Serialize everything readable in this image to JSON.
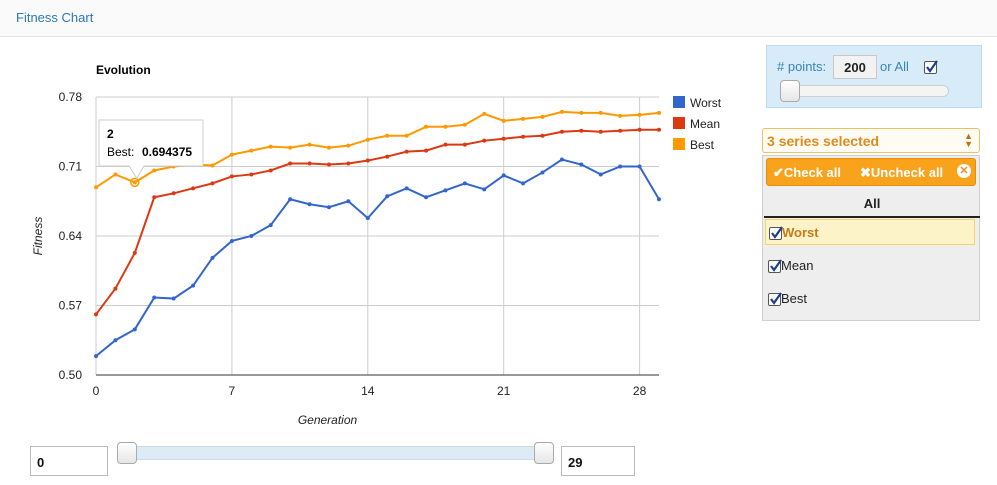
{
  "panel": {
    "title": "Fitness Chart"
  },
  "chart_data": {
    "type": "line",
    "title": "Evolution",
    "xlabel": "Generation",
    "ylabel": "Fitness",
    "xlim": [
      0,
      29
    ],
    "ylim": [
      0.5,
      0.78
    ],
    "xticks": [
      "0",
      "7",
      "14",
      "21",
      "28"
    ],
    "xtick_values": [
      0,
      7,
      14,
      21,
      28
    ],
    "yticks": [
      "0.78",
      "0.71",
      "0.64",
      "0.57",
      "0.50"
    ],
    "ytick_values": [
      0.78,
      0.71,
      0.64,
      0.57,
      0.5
    ],
    "grid": true,
    "legend_position": "right",
    "x": [
      0,
      1,
      2,
      3,
      4,
      5,
      6,
      7,
      8,
      9,
      10,
      11,
      12,
      13,
      14,
      15,
      16,
      17,
      18,
      19,
      20,
      21,
      22,
      23,
      24,
      25,
      26,
      27,
      28,
      29
    ],
    "series": [
      {
        "name": "Worst",
        "color": "#3366cc",
        "values": [
          0.519,
          0.535,
          0.546,
          0.578,
          0.577,
          0.59,
          0.618,
          0.635,
          0.64,
          0.651,
          0.677,
          0.672,
          0.669,
          0.675,
          0.658,
          0.68,
          0.688,
          0.679,
          0.686,
          0.693,
          0.687,
          0.701,
          0.693,
          0.704,
          0.717,
          0.712,
          0.702,
          0.71,
          0.71,
          0.677
        ]
      },
      {
        "name": "Mean",
        "color": "#dc3912",
        "values": [
          0.561,
          0.587,
          0.623,
          0.679,
          0.683,
          0.688,
          0.693,
          0.7,
          0.702,
          0.706,
          0.713,
          0.713,
          0.712,
          0.713,
          0.716,
          0.72,
          0.725,
          0.726,
          0.732,
          0.732,
          0.736,
          0.738,
          0.74,
          0.741,
          0.745,
          0.746,
          0.745,
          0.746,
          0.747,
          0.747
        ]
      },
      {
        "name": "Best",
        "color": "#ff9900",
        "values": [
          0.689,
          0.702,
          0.694,
          0.706,
          0.71,
          0.712,
          0.711,
          0.722,
          0.726,
          0.73,
          0.729,
          0.732,
          0.729,
          0.731,
          0.737,
          0.741,
          0.741,
          0.75,
          0.75,
          0.752,
          0.763,
          0.756,
          0.758,
          0.76,
          0.765,
          0.764,
          0.764,
          0.761,
          0.762,
          0.764
        ]
      }
    ],
    "tooltip": {
      "x_label": "2",
      "series_label": "Best:",
      "value_label": "0.694375",
      "series_index": 2,
      "point_index": 2
    }
  },
  "range": {
    "min_value": "0",
    "max_value": "29"
  },
  "points": {
    "label": "# points:",
    "value": "200",
    "all_label": "or All",
    "all_checked": true
  },
  "multiselect": {
    "button_label": "3 series selected",
    "check_all": "Check all",
    "uncheck_all": "Uncheck all",
    "group_label": "All",
    "items": [
      {
        "label": "Worst",
        "checked": true
      },
      {
        "label": "Mean",
        "checked": true
      },
      {
        "label": "Best",
        "checked": true
      }
    ],
    "accent": "#f9a21c"
  }
}
